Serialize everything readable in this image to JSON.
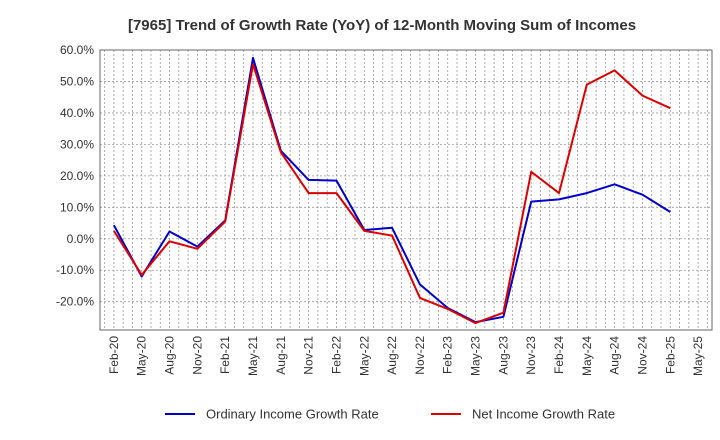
{
  "chart_data": {
    "type": "line",
    "title": "[7965]  Trend of Growth Rate (YoY) of 12-Month Moving Sum of Incomes",
    "xlabel": "",
    "ylabel": "",
    "x_ticks": [
      "Feb-20",
      "May-20",
      "Aug-20",
      "Nov-20",
      "Feb-21",
      "May-21",
      "Aug-21",
      "Nov-21",
      "Feb-22",
      "May-22",
      "Aug-22",
      "Nov-22",
      "Feb-23",
      "May-23",
      "Aug-23",
      "Nov-23",
      "Feb-24",
      "May-24",
      "Aug-24",
      "Nov-24",
      "Feb-25",
      "May-25"
    ],
    "y_ticks": [
      "60.0%",
      "50.0%",
      "40.0%",
      "30.0%",
      "20.0%",
      "10.0%",
      "0.0%",
      "-10.0%",
      "-20.0%"
    ],
    "y_tick_values": [
      60,
      50,
      40,
      30,
      20,
      10,
      0,
      -10,
      -20
    ],
    "ylim": [
      -29,
      60
    ],
    "grid": true,
    "legend_position": "bottom",
    "series": [
      {
        "name": "Ordinary Income Growth Rate",
        "color": "#0000cc",
        "values": [
          4.3,
          -12.0,
          2.3,
          -2.5,
          5.8,
          57.5,
          28.0,
          18.7,
          18.5,
          2.8,
          3.5,
          -14.5,
          -22.0,
          -26.5,
          -24.8,
          11.8,
          12.5,
          14.5,
          17.3,
          14.0,
          8.5,
          null
        ]
      },
      {
        "name": "Net Income Growth Rate",
        "color": "#dd0000",
        "values": [
          2.5,
          -11.5,
          -0.8,
          -3.2,
          5.5,
          55.5,
          27.5,
          14.5,
          14.5,
          2.5,
          1.0,
          -18.8,
          -22.3,
          -26.8,
          -23.5,
          21.3,
          14.5,
          49.0,
          53.5,
          45.5,
          41.5,
          null
        ]
      }
    ]
  }
}
